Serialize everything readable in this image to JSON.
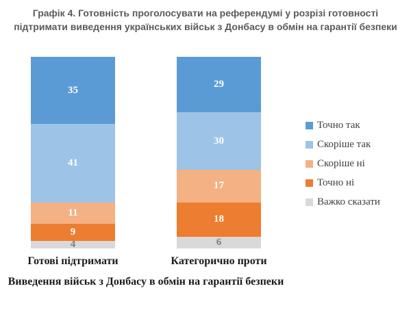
{
  "chart_data": {
    "type": "bar",
    "variant": "stacked-column-100",
    "title": "Графік 4. Готовність проголосувати на референдумі у розрізі готовності підтримати виведення українських військ з Донбасу в обмін на гарантії безпеки",
    "categories": [
      "Готові підтримати",
      "Категорично проти"
    ],
    "series": [
      {
        "name": "Точно так",
        "color": "#5B9BD5",
        "label_color": "#FFFFFF",
        "values": [
          35,
          29
        ]
      },
      {
        "name": "Скоріше так",
        "color": "#9DC3E6",
        "label_color": "#FFFFFF",
        "values": [
          41,
          30
        ]
      },
      {
        "name": "Скоріше ні",
        "color": "#F4B183",
        "label_color": "#FFFFFF",
        "values": [
          11,
          17
        ]
      },
      {
        "name": "Точно ні",
        "color": "#ED7D31",
        "label_color": "#FFFFFF",
        "values": [
          9,
          18
        ]
      },
      {
        "name": "Важко сказати",
        "color": "#D9D9D9",
        "label_color": "#7F7F7F",
        "values": [
          4,
          6
        ]
      }
    ],
    "xlabel": "Виведення військ з Донбасу в обмін на гарантії безпеки",
    "ylim": [
      0,
      100
    ],
    "grid": false,
    "legend_position": "right",
    "data_labels": true,
    "title_color": "#595959",
    "axis_text_color": "#1a1a1a",
    "legend_text_color": "#404040",
    "background": "#FFFFFF"
  }
}
